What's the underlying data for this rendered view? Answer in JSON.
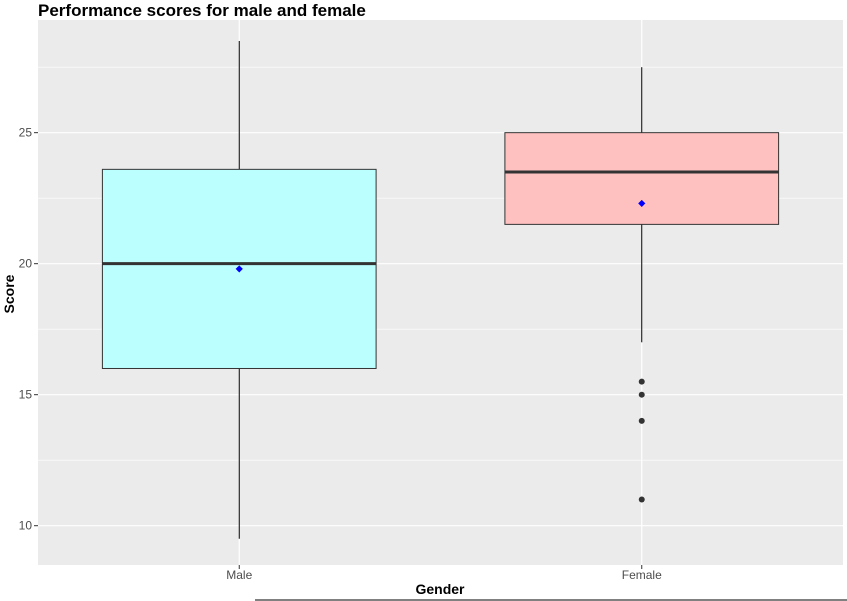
{
  "chart_data": {
    "type": "boxplot",
    "title": "Performance scores for male and female",
    "xlabel": "Gender",
    "ylabel": "Score",
    "categories": [
      "Male",
      "Female"
    ],
    "ylim": [
      8.5,
      29.3
    ],
    "yticks": [
      10,
      15,
      20,
      25
    ],
    "ytick_labels": [
      "10",
      "15",
      "20",
      "25"
    ],
    "grid": true,
    "boxes": [
      {
        "category": "Male",
        "whisker_low": 9.5,
        "q1": 16.0,
        "median": 20.0,
        "q3": 23.6,
        "whisker_high": 28.5,
        "mean": 19.8,
        "outliers": [],
        "fill": "#bbffff"
      },
      {
        "category": "Female",
        "whisker_low": 17.0,
        "q1": 21.5,
        "median": 23.5,
        "q3": 25.0,
        "whisker_high": 27.5,
        "mean": 22.3,
        "outliers": [
          15.5,
          15.0,
          14.0,
          11.0
        ],
        "fill": "#ffc0c0"
      }
    ],
    "colors": {
      "panel": "#ebebeb",
      "grid": "#ffffff",
      "mean_marker": "#0000ff",
      "outlier": "#333333",
      "median": "#333333"
    }
  }
}
